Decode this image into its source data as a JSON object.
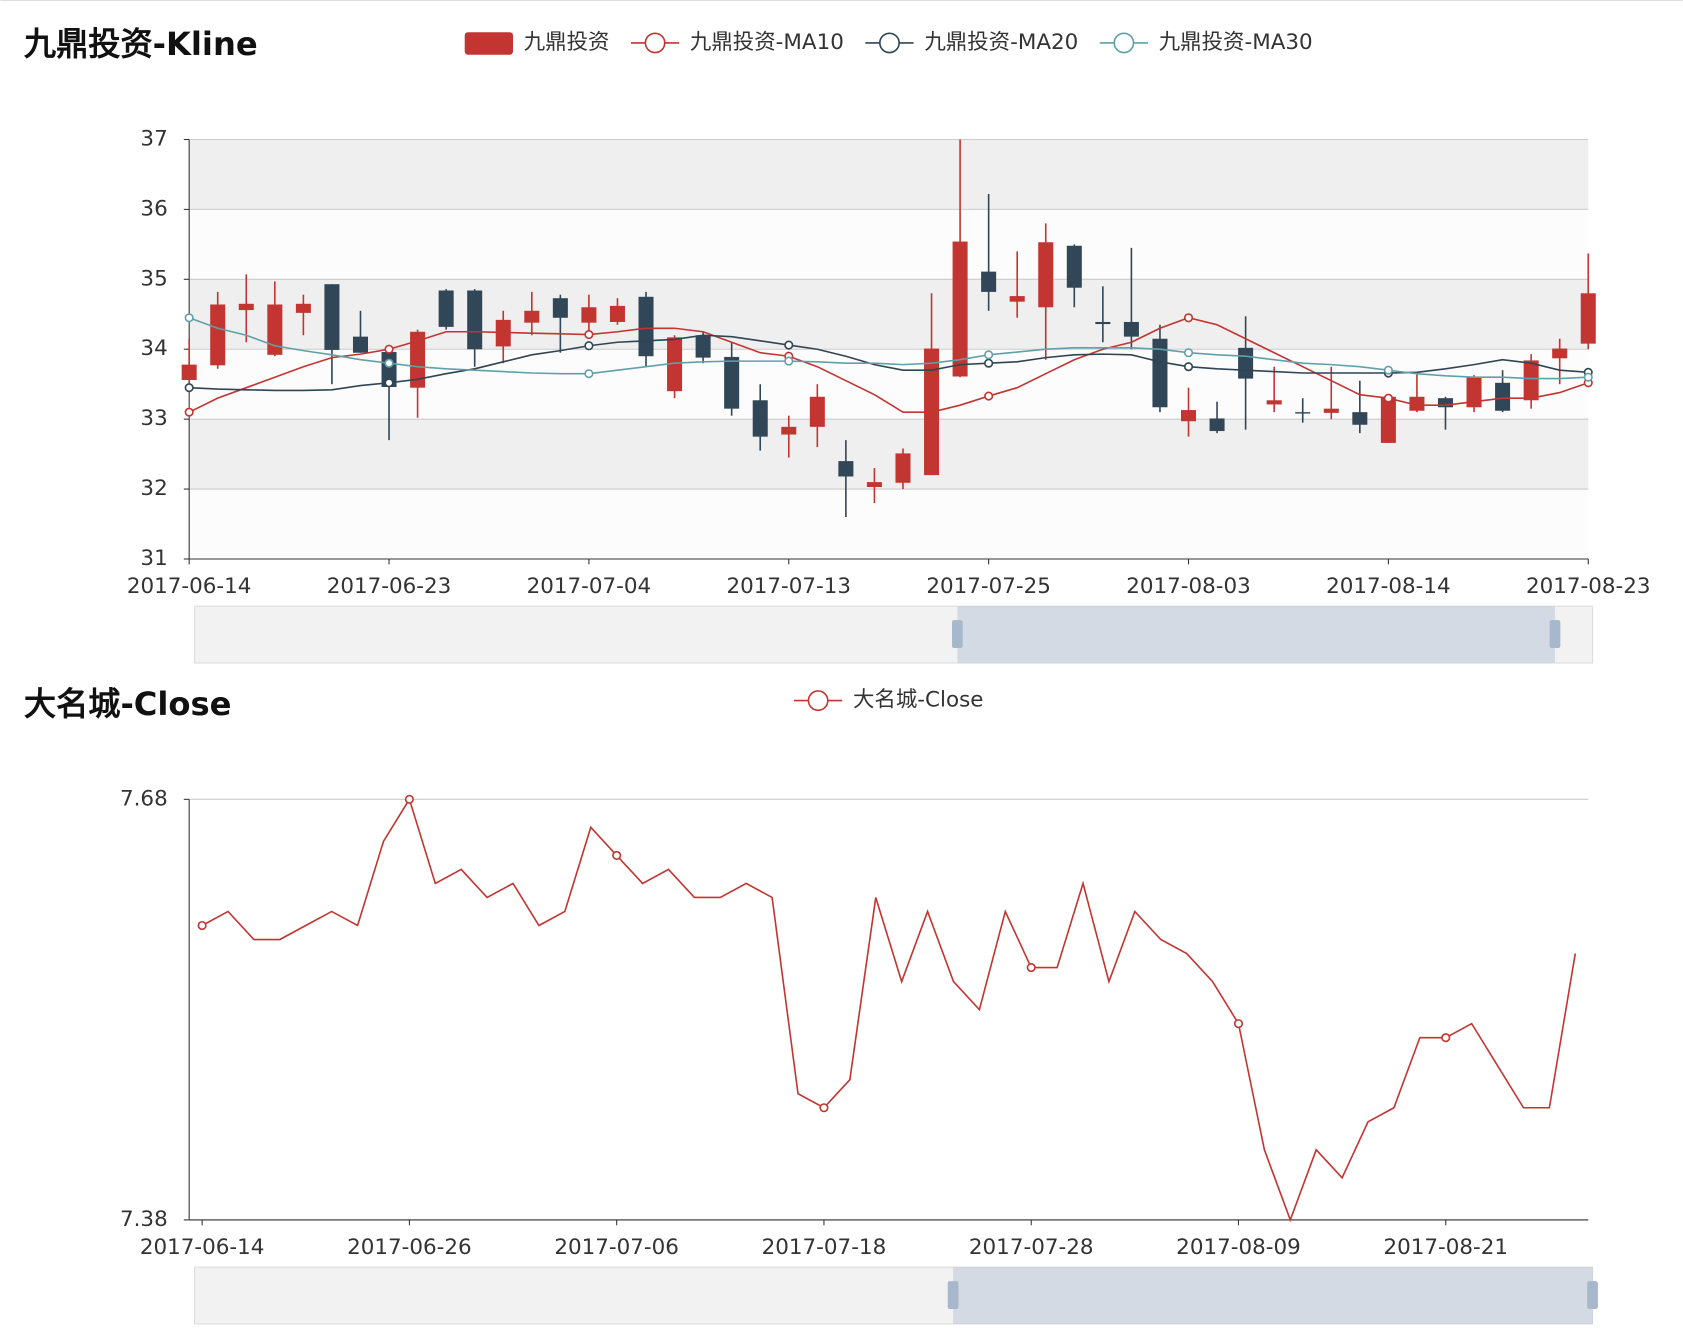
{
  "chart_data": [
    {
      "type": "candlestick",
      "title": "九鼎投资-Kline",
      "categories": [
        "2017-06-14",
        null,
        null,
        null,
        null,
        null,
        null,
        "2017-06-23",
        null,
        null,
        null,
        null,
        null,
        null,
        "2017-07-04",
        null,
        null,
        null,
        null,
        null,
        null,
        "2017-07-13",
        null,
        null,
        null,
        null,
        null,
        null,
        "2017-07-25",
        null,
        null,
        null,
        null,
        null,
        null,
        "2017-08-03",
        null,
        null,
        null,
        null,
        null,
        null,
        "2017-08-14",
        null,
        null,
        null,
        null,
        null,
        null,
        "2017-08-23"
      ],
      "series": [
        {
          "name": "九鼎投资",
          "type": "candlestick",
          "color": "#c23531",
          "down_color": "#314656",
          "open": [
            33.56,
            33.77,
            34.56,
            33.92,
            34.52,
            34.93,
            34.18,
            33.96,
            33.45,
            34.84,
            34.84,
            34.04,
            34.38,
            34.73,
            34.38,
            34.39,
            34.75,
            33.4,
            34.2,
            33.89,
            33.27,
            32.78,
            32.89,
            32.4,
            32.03,
            32.09,
            32.2,
            33.61,
            35.11,
            34.68,
            34.6,
            35.48,
            34.39,
            34.39,
            34.15,
            32.97,
            33.01,
            34.02,
            33.21,
            33.1,
            33.09,
            33.1,
            32.66,
            33.12,
            33.3,
            33.17,
            33.52,
            33.27,
            33.87,
            34.08
          ],
          "close": [
            33.78,
            34.64,
            34.65,
            34.64,
            34.65,
            33.99,
            33.95,
            33.46,
            34.25,
            34.32,
            34.0,
            34.42,
            34.55,
            34.45,
            34.6,
            34.62,
            33.9,
            34.17,
            33.88,
            33.15,
            32.75,
            32.89,
            33.32,
            32.18,
            32.1,
            32.51,
            34.01,
            35.54,
            34.82,
            34.76,
            35.53,
            34.88,
            34.36,
            34.18,
            33.17,
            33.13,
            32.83,
            33.58,
            33.27,
            33.08,
            33.15,
            32.92,
            33.32,
            33.32,
            33.17,
            33.61,
            33.12,
            33.84,
            34.01,
            34.8
          ],
          "low": [
            33.5,
            33.72,
            34.1,
            33.9,
            34.2,
            33.5,
            33.95,
            32.7,
            33.02,
            34.28,
            33.75,
            33.8,
            34.2,
            33.95,
            34.2,
            34.35,
            33.75,
            33.3,
            33.8,
            33.05,
            32.55,
            32.45,
            32.6,
            31.6,
            31.8,
            32.0,
            32.2,
            33.6,
            34.55,
            34.45,
            33.85,
            34.6,
            34.1,
            34.0,
            33.1,
            32.75,
            32.8,
            32.85,
            33.1,
            32.95,
            33.0,
            32.8,
            32.66,
            33.1,
            32.85,
            33.1,
            33.1,
            33.15,
            33.5,
            34.0
          ],
          "high": [
            34.15,
            34.82,
            35.07,
            34.97,
            34.78,
            34.93,
            34.55,
            34.0,
            34.28,
            34.86,
            34.86,
            34.55,
            34.82,
            34.78,
            34.78,
            34.73,
            34.82,
            34.2,
            34.24,
            34.1,
            33.5,
            33.05,
            33.5,
            32.7,
            32.3,
            32.58,
            34.8,
            37.0,
            36.22,
            35.4,
            35.8,
            35.5,
            34.9,
            35.45,
            34.35,
            33.45,
            33.25,
            34.47,
            33.75,
            33.3,
            33.75,
            33.55,
            33.35,
            33.65,
            33.32,
            33.63,
            33.7,
            33.93,
            34.15,
            35.37
          ]
        },
        {
          "name": "九鼎投资-MA10",
          "type": "line",
          "color": "#c23531",
          "values": [
            33.1,
            33.3,
            33.45,
            33.6,
            33.75,
            33.88,
            33.93,
            34.0,
            34.12,
            34.25,
            34.25,
            34.24,
            34.23,
            34.22,
            34.21,
            34.25,
            34.3,
            34.3,
            34.25,
            34.1,
            33.95,
            33.9,
            33.75,
            33.55,
            33.35,
            33.1,
            33.1,
            33.2,
            33.33,
            33.45,
            33.65,
            33.85,
            34.0,
            34.1,
            34.3,
            34.45,
            34.35,
            34.15,
            33.95,
            33.75,
            33.55,
            33.35,
            33.3,
            33.2,
            33.2,
            33.25,
            33.3,
            33.3,
            33.38,
            33.52
          ]
        },
        {
          "name": "九鼎投资-MA20",
          "type": "line",
          "color": "#2f4554",
          "values": [
            33.45,
            33.43,
            33.42,
            33.41,
            33.41,
            33.42,
            33.48,
            33.52,
            33.57,
            33.65,
            33.72,
            33.82,
            33.92,
            33.98,
            34.05,
            34.1,
            34.12,
            34.14,
            34.2,
            34.18,
            34.12,
            34.06,
            34.0,
            33.9,
            33.78,
            33.7,
            33.7,
            33.78,
            33.8,
            33.82,
            33.88,
            33.92,
            33.93,
            33.92,
            33.82,
            33.75,
            33.72,
            33.7,
            33.68,
            33.66,
            33.66,
            33.66,
            33.66,
            33.67,
            33.72,
            33.78,
            33.85,
            33.8,
            33.7,
            33.67
          ]
        },
        {
          "name": "九鼎投资-MA30",
          "type": "line",
          "color": "#61a0a8",
          "values": [
            34.45,
            34.3,
            34.2,
            34.05,
            33.98,
            33.92,
            33.85,
            33.8,
            33.75,
            33.72,
            33.7,
            33.68,
            33.66,
            33.65,
            33.65,
            33.7,
            33.75,
            33.8,
            33.82,
            33.83,
            33.83,
            33.83,
            33.82,
            33.8,
            33.8,
            33.78,
            33.8,
            33.85,
            33.92,
            33.96,
            34.0,
            34.02,
            34.02,
            34.02,
            34.0,
            33.95,
            33.92,
            33.9,
            33.85,
            33.8,
            33.78,
            33.75,
            33.7,
            33.65,
            33.62,
            33.6,
            33.6,
            33.58,
            33.58,
            33.6
          ]
        }
      ],
      "ylim": [
        31,
        37
      ],
      "yticks": [
        31,
        32,
        33,
        34,
        35,
        36,
        37
      ],
      "grid": true,
      "split_area": true
    },
    {
      "type": "line",
      "title": "大名城-Close",
      "categories": [
        "2017-06-14",
        null,
        null,
        null,
        null,
        null,
        null,
        null,
        "2017-06-26",
        null,
        null,
        null,
        null,
        null,
        null,
        null,
        "2017-07-06",
        null,
        null,
        null,
        null,
        null,
        null,
        null,
        "2017-07-18",
        null,
        null,
        null,
        null,
        null,
        null,
        null,
        "2017-07-28",
        null,
        null,
        null,
        null,
        null,
        null,
        null,
        "2017-08-09",
        null,
        null,
        null,
        null,
        null,
        null,
        null,
        "2017-08-21",
        null,
        null,
        null,
        null,
        null
      ],
      "series": [
        {
          "name": "大名城-Close",
          "color": "#c23531",
          "values": [
            7.59,
            7.6,
            7.58,
            7.58,
            7.59,
            7.6,
            7.59,
            7.65,
            7.68,
            7.62,
            7.63,
            7.61,
            7.62,
            7.59,
            7.6,
            7.66,
            7.64,
            7.62,
            7.63,
            7.61,
            7.61,
            7.62,
            7.61,
            7.47,
            7.46,
            7.48,
            7.61,
            7.55,
            7.6,
            7.55,
            7.53,
            7.6,
            7.56,
            7.56,
            7.62,
            7.55,
            7.6,
            7.58,
            7.57,
            7.55,
            7.52,
            7.43,
            7.38,
            7.43,
            7.41,
            7.45,
            7.46,
            7.51,
            7.51,
            7.52,
            7.49,
            7.46,
            7.46,
            7.57
          ]
        }
      ],
      "ylim": [
        7.38,
        7.68
      ],
      "yticks": [
        7.38,
        7.68
      ],
      "grid": true,
      "split_area": false
    }
  ]
}
